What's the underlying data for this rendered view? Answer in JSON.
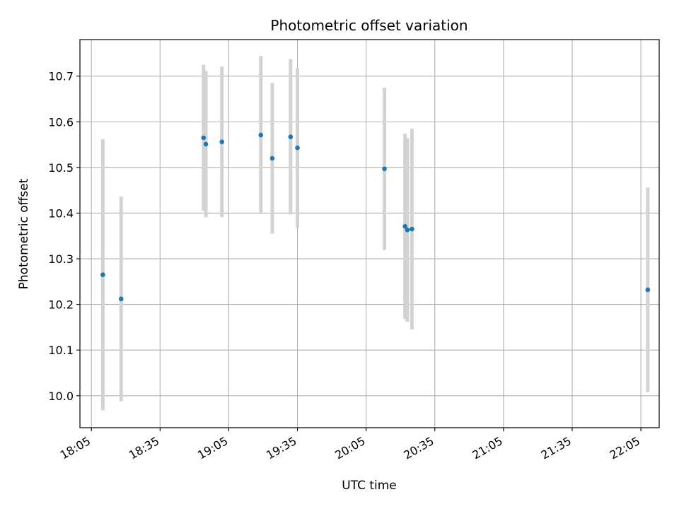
{
  "chart_data": {
    "type": "scatter",
    "title": "Photometric offset variation",
    "xlabel": "UTC time",
    "ylabel": "Photometric offset",
    "grid": true,
    "x_ticks": [
      "18:05",
      "18:35",
      "19:05",
      "19:35",
      "20:05",
      "20:35",
      "21:05",
      "21:35",
      "22:05"
    ],
    "y_ticks": [
      "10.0",
      "10.1",
      "10.2",
      "10.3",
      "10.4",
      "10.5",
      "10.6",
      "10.7"
    ],
    "xlim": [
      "18:00",
      "22:13"
    ],
    "ylim": [
      9.93,
      10.78
    ],
    "series": [
      {
        "marker_color": "#1f77b4",
        "errorbar_color": "#d3d3d3",
        "points": [
          {
            "x": "18:10",
            "y": 10.265,
            "yerr": 0.297
          },
          {
            "x": "18:18",
            "y": 10.212,
            "yerr": 0.224
          },
          {
            "x": "18:54",
            "y": 10.565,
            "yerr": 0.16
          },
          {
            "x": "18:55",
            "y": 10.551,
            "yerr": 0.16
          },
          {
            "x": "19:02",
            "y": 10.556,
            "yerr": 0.165
          },
          {
            "x": "19:19",
            "y": 10.571,
            "yerr": 0.173
          },
          {
            "x": "19:24",
            "y": 10.52,
            "yerr": 0.165
          },
          {
            "x": "19:32",
            "y": 10.567,
            "yerr": 0.17
          },
          {
            "x": "19:35",
            "y": 10.543,
            "yerr": 0.175
          },
          {
            "x": "20:13",
            "y": 10.497,
            "yerr": 0.178
          },
          {
            "x": "20:22",
            "y": 10.371,
            "yerr": 0.203
          },
          {
            "x": "20:23",
            "y": 10.363,
            "yerr": 0.201
          },
          {
            "x": "20:25",
            "y": 10.365,
            "yerr": 0.22
          },
          {
            "x": "22:08",
            "y": 10.232,
            "yerr": 0.224
          }
        ]
      }
    ]
  }
}
